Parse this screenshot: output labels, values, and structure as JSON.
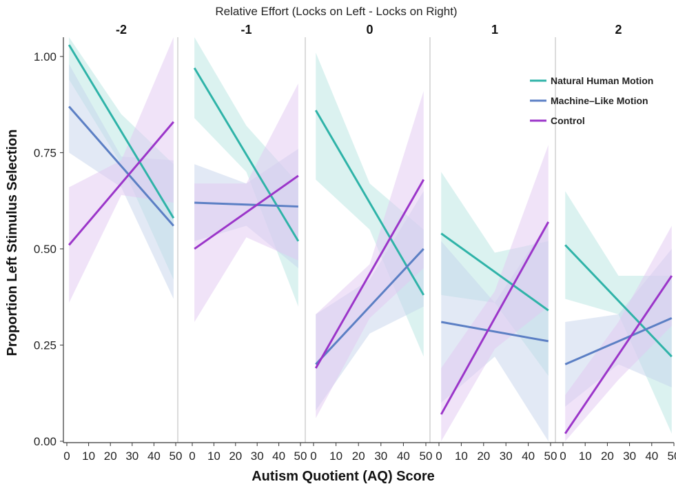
{
  "chart_data": {
    "type": "line",
    "supertitle": "Relative Effort (Locks on Left - Locks on Right)",
    "xlabel": "Autism Quotient (AQ) Score",
    "ylabel": "Proportion Left Stimulus Selection",
    "xlim": [
      0,
      50
    ],
    "ylim": [
      0,
      1.05
    ],
    "x_ticks": [
      0,
      10,
      20,
      30,
      40,
      50
    ],
    "x_tick_labels": [
      "0",
      "10",
      "20",
      "30",
      "40",
      "50"
    ],
    "y_ticks": [
      0,
      0.25,
      0.5,
      0.75,
      1.0
    ],
    "y_tick_labels": [
      "0.00",
      "0.25",
      "0.50",
      "0.75",
      "1.00"
    ],
    "legend_position": "top-right",
    "grid": false,
    "series_styles": [
      {
        "name": "Natural Human Motion",
        "color": "#2fb3a8",
        "band_color": "#b8e6e1"
      },
      {
        "name": "Machine–Like Motion",
        "color": "#5b7fc4",
        "band_color": "#c5d3ec"
      },
      {
        "name": "Control",
        "color": "#9b35c9",
        "band_color": "#e2c8f2"
      }
    ],
    "facets": [
      {
        "label": "-2",
        "series": [
          {
            "name": "Natural Human Motion",
            "x": [
              1,
              49
            ],
            "y": [
              1.03,
              0.58
            ],
            "band_lower": [
              [
                1,
                0.94
              ],
              [
                25,
                0.72
              ],
              [
                49,
                0.42
              ]
            ],
            "band_upper": [
              [
                1,
                1.1
              ],
              [
                25,
                0.85
              ],
              [
                49,
                0.72
              ]
            ]
          },
          {
            "name": "Machine–Like Motion",
            "x": [
              1,
              49
            ],
            "y": [
              0.87,
              0.56
            ],
            "band_lower": [
              [
                1,
                0.75
              ],
              [
                25,
                0.66
              ],
              [
                49,
                0.37
              ]
            ],
            "band_upper": [
              [
                1,
                0.98
              ],
              [
                25,
                0.74
              ],
              [
                49,
                0.73
              ]
            ]
          },
          {
            "name": "Control",
            "x": [
              1,
              49
            ],
            "y": [
              0.51,
              0.83
            ],
            "band_lower": [
              [
                1,
                0.36
              ],
              [
                25,
                0.64
              ],
              [
                49,
                0.62
              ]
            ],
            "band_upper": [
              [
                1,
                0.66
              ],
              [
                25,
                0.73
              ],
              [
                49,
                1.05
              ]
            ]
          }
        ]
      },
      {
        "label": "-1",
        "series": [
          {
            "name": "Natural Human Motion",
            "x": [
              1,
              49
            ],
            "y": [
              0.97,
              0.52
            ],
            "band_lower": [
              [
                1,
                0.84
              ],
              [
                25,
                0.7
              ],
              [
                49,
                0.35
              ]
            ],
            "band_upper": [
              [
                1,
                1.08
              ],
              [
                25,
                0.82
              ],
              [
                49,
                0.67
              ]
            ]
          },
          {
            "name": "Machine–Like Motion",
            "x": [
              1,
              49
            ],
            "y": [
              0.62,
              0.61
            ],
            "band_lower": [
              [
                1,
                0.52
              ],
              [
                25,
                0.56
              ],
              [
                49,
                0.45
              ]
            ],
            "band_upper": [
              [
                1,
                0.72
              ],
              [
                25,
                0.67
              ],
              [
                49,
                0.76
              ]
            ]
          },
          {
            "name": "Control",
            "x": [
              1,
              49
            ],
            "y": [
              0.5,
              0.69
            ],
            "band_lower": [
              [
                1,
                0.31
              ],
              [
                25,
                0.53
              ],
              [
                49,
                0.47
              ]
            ],
            "band_upper": [
              [
                1,
                0.67
              ],
              [
                25,
                0.67
              ],
              [
                49,
                0.93
              ]
            ]
          }
        ]
      },
      {
        "label": "0",
        "series": [
          {
            "name": "Natural Human Motion",
            "x": [
              1,
              49
            ],
            "y": [
              0.86,
              0.38
            ],
            "band_lower": [
              [
                1,
                0.68
              ],
              [
                25,
                0.55
              ],
              [
                49,
                0.22
              ]
            ],
            "band_upper": [
              [
                1,
                1.01
              ],
              [
                25,
                0.67
              ],
              [
                49,
                0.55
              ]
            ]
          },
          {
            "name": "Machine–Like Motion",
            "x": [
              1,
              49
            ],
            "y": [
              0.2,
              0.5
            ],
            "band_lower": [
              [
                1,
                0.08
              ],
              [
                25,
                0.28
              ],
              [
                49,
                0.35
              ]
            ],
            "band_upper": [
              [
                1,
                0.33
              ],
              [
                25,
                0.42
              ],
              [
                49,
                0.65
              ]
            ]
          },
          {
            "name": "Control",
            "x": [
              1,
              49
            ],
            "y": [
              0.19,
              0.68
            ],
            "band_lower": [
              [
                1,
                0.06
              ],
              [
                25,
                0.32
              ],
              [
                49,
                0.45
              ]
            ],
            "band_upper": [
              [
                1,
                0.33
              ],
              [
                25,
                0.46
              ],
              [
                49,
                0.91
              ]
            ]
          }
        ]
      },
      {
        "label": "1",
        "series": [
          {
            "name": "Natural Human Motion",
            "x": [
              1,
              49
            ],
            "y": [
              0.54,
              0.34
            ],
            "band_lower": [
              [
                1,
                0.38
              ],
              [
                25,
                0.36
              ],
              [
                49,
                0.17
              ]
            ],
            "band_upper": [
              [
                1,
                0.7
              ],
              [
                25,
                0.49
              ],
              [
                49,
                0.52
              ]
            ]
          },
          {
            "name": "Machine–Like Motion",
            "x": [
              1,
              49
            ],
            "y": [
              0.31,
              0.26
            ],
            "band_lower": [
              [
                1,
                0.1
              ],
              [
                25,
                0.22
              ],
              [
                49,
                -0.05
              ]
            ],
            "band_upper": [
              [
                1,
                0.52
              ],
              [
                25,
                0.36
              ],
              [
                49,
                0.57
              ]
            ]
          },
          {
            "name": "Control",
            "x": [
              1,
              49
            ],
            "y": [
              0.07,
              0.57
            ],
            "band_lower": [
              [
                1,
                -0.05
              ],
              [
                25,
                0.24
              ],
              [
                49,
                0.35
              ]
            ],
            "band_upper": [
              [
                1,
                0.19
              ],
              [
                25,
                0.39
              ],
              [
                49,
                0.77
              ]
            ]
          }
        ]
      },
      {
        "label": "2",
        "series": [
          {
            "name": "Natural Human Motion",
            "x": [
              1,
              49
            ],
            "y": [
              0.51,
              0.22
            ],
            "band_lower": [
              [
                1,
                0.37
              ],
              [
                25,
                0.33
              ],
              [
                49,
                0.02
              ]
            ],
            "band_upper": [
              [
                1,
                0.65
              ],
              [
                25,
                0.43
              ],
              [
                49,
                0.43
              ]
            ]
          },
          {
            "name": "Machine–Like Motion",
            "x": [
              1,
              49
            ],
            "y": [
              0.2,
              0.32
            ],
            "band_lower": [
              [
                1,
                0.09
              ],
              [
                25,
                0.2
              ],
              [
                49,
                0.14
              ]
            ],
            "band_upper": [
              [
                1,
                0.31
              ],
              [
                25,
                0.33
              ],
              [
                49,
                0.5
              ]
            ]
          },
          {
            "name": "Control",
            "x": [
              1,
              49
            ],
            "y": [
              0.02,
              0.43
            ],
            "band_lower": [
              [
                1,
                -0.05
              ],
              [
                25,
                0.16
              ],
              [
                49,
                0.3
              ]
            ],
            "band_upper": [
              [
                1,
                0.12
              ],
              [
                25,
                0.31
              ],
              [
                49,
                0.56
              ]
            ]
          }
        ]
      }
    ]
  }
}
